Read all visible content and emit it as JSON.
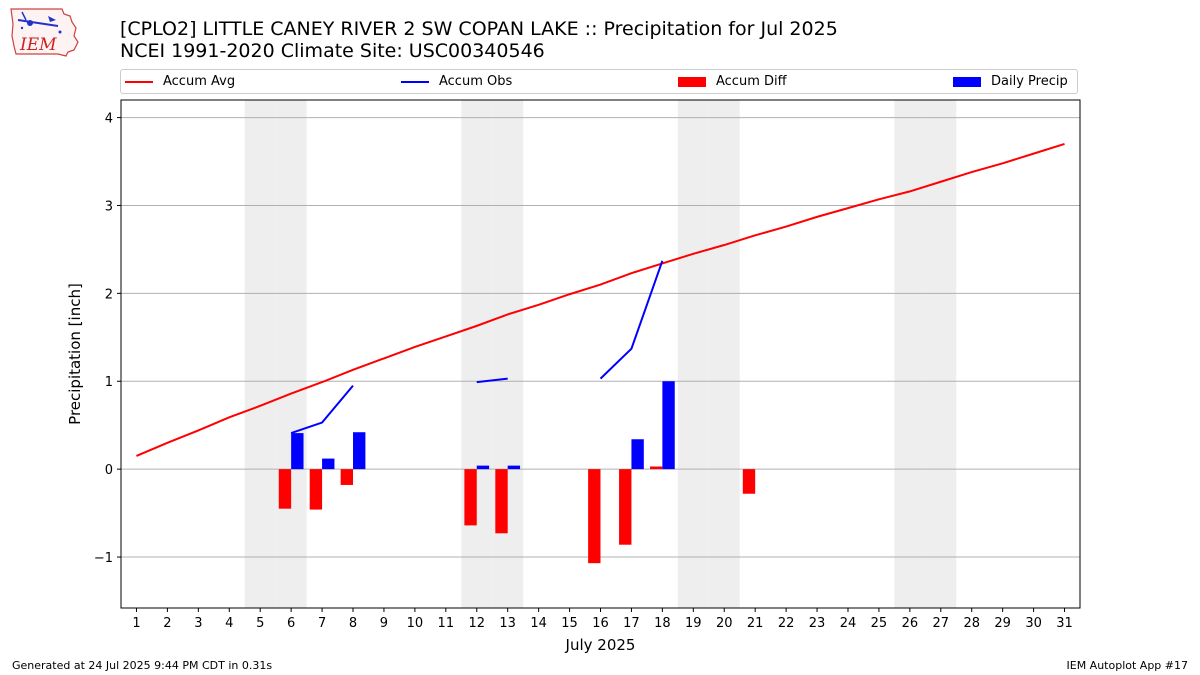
{
  "logo": {
    "text": "IEM"
  },
  "header": {
    "title_line1": "[CPLO2] LITTLE CANEY RIVER 2 SW COPAN LAKE :: Precipitation for Jul 2025",
    "title_line2": "NCEI 1991-2020 Climate Site: USC00340546"
  },
  "legend": {
    "accum_avg": "Accum Avg",
    "accum_obs": "Accum Obs",
    "accum_diff": "Accum Diff",
    "daily_precip": "Daily Precip"
  },
  "footer": {
    "generated": "Generated at 24 Jul 2025 9:44 PM CDT in 0.31s",
    "app": "IEM Autoplot App #17"
  },
  "colors": {
    "avg": "#ff0000",
    "obs": "#0000ff",
    "diff": "#ff0000",
    "daily": "#0000ff",
    "weekend": "#eeeeee",
    "grid": "#b0b0b0"
  },
  "chart_data": {
    "type": "bar",
    "xlabel": "July 2025",
    "ylabel": "Precipitation [inch]",
    "xlim": [
      0.5,
      31.5
    ],
    "ylim": [
      -1.58,
      4.2
    ],
    "yticks": [
      -1,
      0,
      1,
      2,
      3,
      4
    ],
    "ytick_labels": [
      "−1",
      "0",
      "1",
      "2",
      "3",
      "4"
    ],
    "days": [
      1,
      2,
      3,
      4,
      5,
      6,
      7,
      8,
      9,
      10,
      11,
      12,
      13,
      14,
      15,
      16,
      17,
      18,
      19,
      20,
      21,
      22,
      23,
      24,
      25,
      26,
      27,
      28,
      29,
      30,
      31
    ],
    "weekend_days": [
      5,
      6,
      12,
      13,
      19,
      20,
      26,
      27
    ],
    "grid": "horizontal",
    "series": [
      {
        "name": "Accum Avg",
        "type": "line",
        "x": [
          1,
          2,
          3,
          4,
          5,
          6,
          7,
          8,
          9,
          10,
          11,
          12,
          13,
          14,
          15,
          16,
          17,
          18,
          19,
          20,
          21,
          22,
          23,
          24,
          25,
          26,
          27,
          28,
          29,
          30,
          31
        ],
        "values": [
          0.15,
          0.3,
          0.44,
          0.59,
          0.72,
          0.86,
          0.99,
          1.13,
          1.26,
          1.39,
          1.51,
          1.63,
          1.76,
          1.87,
          1.99,
          2.1,
          2.23,
          2.34,
          2.45,
          2.55,
          2.66,
          2.76,
          2.87,
          2.97,
          3.07,
          3.16,
          3.27,
          3.38,
          3.48,
          3.59,
          3.7
        ]
      },
      {
        "name": "Accum Obs",
        "type": "line",
        "segments": [
          {
            "x": [
              6,
              7,
              8
            ],
            "values": [
              0.41,
              0.53,
              0.95
            ]
          },
          {
            "x": [
              12,
              13
            ],
            "values": [
              0.99,
              1.03
            ]
          },
          {
            "x": [
              16,
              17,
              18
            ],
            "values": [
              1.03,
              1.37,
              2.37
            ]
          }
        ]
      },
      {
        "name": "Accum Diff",
        "type": "bar",
        "x": [
          6,
          7,
          8,
          12,
          13,
          16,
          17,
          18,
          21
        ],
        "values": [
          -0.45,
          -0.46,
          -0.18,
          -0.64,
          -0.73,
          -1.07,
          -0.86,
          0.03,
          -0.28
        ]
      },
      {
        "name": "Daily Precip",
        "type": "bar",
        "x": [
          6,
          7,
          8,
          12,
          13,
          17,
          18
        ],
        "values": [
          0.41,
          0.12,
          0.42,
          0.04,
          0.04,
          0.34,
          1.0
        ]
      }
    ]
  }
}
